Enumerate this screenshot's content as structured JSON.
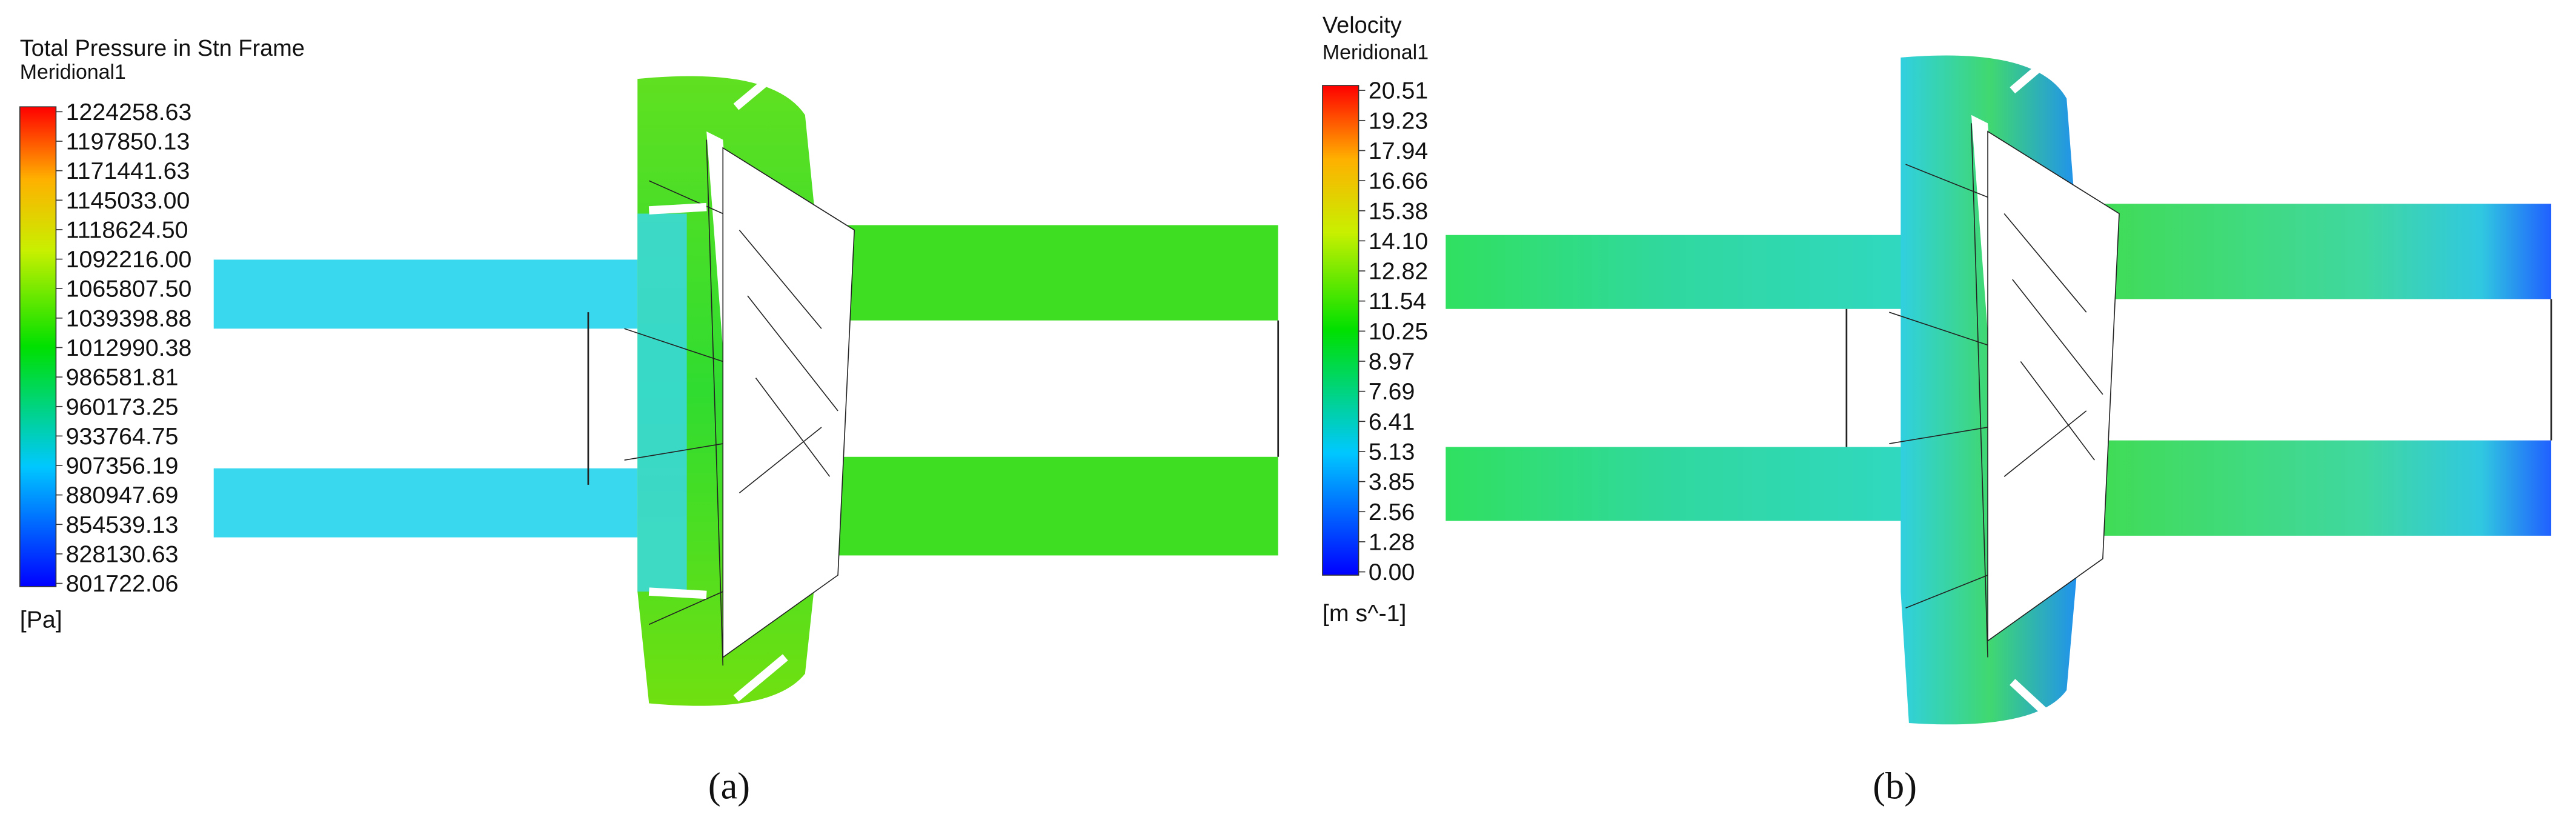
{
  "panels": [
    {
      "title": "Total Pressure in Stn Frame",
      "subtitle": "Meridional1",
      "legend_labels": [
        "1224258.63",
        "1197850.13",
        "1171441.63",
        "1145033.00",
        "1118624.50",
        "1092216.00",
        "1065807.50",
        "1039398.88",
        "1012990.38",
        "986581.81",
        "960173.25",
        "933764.75",
        "907356.19",
        "880947.69",
        "854539.13",
        "828130.63",
        "801722.06"
      ],
      "unit": "[Pa]",
      "caption": "(a)"
    },
    {
      "title": "Velocity",
      "subtitle": "Meridional1",
      "legend_labels": [
        "20.51",
        "19.23",
        "17.94",
        "16.66",
        "15.38",
        "14.10",
        "12.82",
        "11.54",
        "10.25",
        "8.97",
        "7.69",
        "6.41",
        "5.13",
        "3.85",
        "2.56",
        "1.28",
        "0.00"
      ],
      "unit": "[m s^-1]",
      "caption": "(b)"
    }
  ]
}
